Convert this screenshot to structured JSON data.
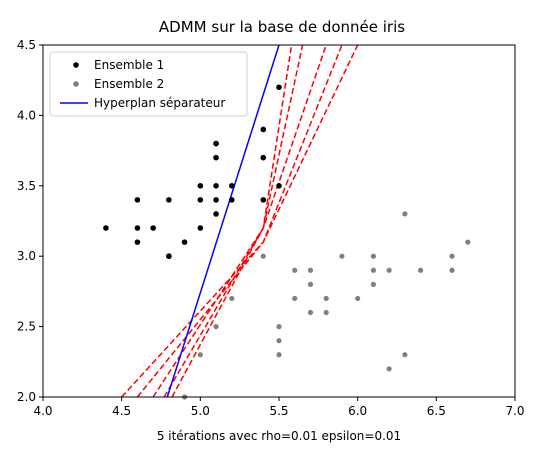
{
  "chart_data": {
    "type": "scatter",
    "title": "ADMM sur la base de donnée iris",
    "xlabel": "5 itérations avec rho=0.01  epsilon=0.01",
    "ylabel": "",
    "xlim": [
      4.0,
      7.0
    ],
    "ylim": [
      2.0,
      4.5
    ],
    "xticks": [
      "4.0",
      "4.5",
      "5.0",
      "5.5",
      "6.0",
      "6.5",
      "7.0"
    ],
    "yticks": [
      "2.0",
      "2.5",
      "3.0",
      "3.5",
      "4.0",
      "4.5"
    ],
    "grid": false,
    "legend_position": "upper-left",
    "legend": [
      "Ensemble 1",
      "Ensemble 2",
      "Hyperplan séparateur"
    ],
    "colors": {
      "ensemble1": "#000000",
      "ensemble2": "#808080",
      "hyperplan": "#0000ff",
      "iterations": "#ff0000"
    },
    "ensemble1": [
      [
        4.4,
        3.2
      ],
      [
        4.6,
        3.4
      ],
      [
        4.6,
        3.2
      ],
      [
        4.6,
        3.1
      ],
      [
        4.7,
        3.2
      ],
      [
        4.8,
        3.4
      ],
      [
        4.8,
        3.0
      ],
      [
        4.8,
        3.0
      ],
      [
        4.9,
        3.1
      ],
      [
        5.0,
        3.5
      ],
      [
        5.0,
        3.4
      ],
      [
        5.0,
        3.2
      ],
      [
        5.1,
        3.8
      ],
      [
        5.1,
        3.8
      ],
      [
        5.1,
        3.7
      ],
      [
        5.1,
        3.5
      ],
      [
        5.1,
        3.4
      ],
      [
        5.1,
        3.3
      ],
      [
        5.2,
        3.5
      ],
      [
        5.2,
        3.4
      ],
      [
        5.4,
        3.9
      ],
      [
        5.4,
        3.7
      ],
      [
        5.4,
        3.4
      ],
      [
        5.5,
        4.2
      ],
      [
        5.5,
        3.5
      ]
    ],
    "ensemble2": [
      [
        4.9,
        2.0
      ],
      [
        5.0,
        2.3
      ],
      [
        5.1,
        2.5
      ],
      [
        5.2,
        2.7
      ],
      [
        5.4,
        3.0
      ],
      [
        5.5,
        2.5
      ],
      [
        5.5,
        2.4
      ],
      [
        5.5,
        2.3
      ],
      [
        5.6,
        2.9
      ],
      [
        5.6,
        2.7
      ],
      [
        5.7,
        2.9
      ],
      [
        5.7,
        2.8
      ],
      [
        5.7,
        2.6
      ],
      [
        5.8,
        2.7
      ],
      [
        5.8,
        2.6
      ],
      [
        5.9,
        3.0
      ],
      [
        6.0,
        2.7
      ],
      [
        6.1,
        3.0
      ],
      [
        6.1,
        2.9
      ],
      [
        6.1,
        2.8
      ],
      [
        6.2,
        2.9
      ],
      [
        6.2,
        2.2
      ],
      [
        6.3,
        3.3
      ],
      [
        6.3,
        2.3
      ],
      [
        6.4,
        2.9
      ],
      [
        6.6,
        3.0
      ],
      [
        6.6,
        2.9
      ],
      [
        6.7,
        3.1
      ]
    ],
    "hyperplan": [
      [
        4.79,
        2.0
      ],
      [
        5.5,
        4.5
      ]
    ],
    "iterations": [
      [
        [
          4.5,
          2.0
        ],
        [
          5.4,
          3.1
        ],
        [
          6.0,
          4.5
        ]
      ],
      [
        [
          4.6,
          2.0
        ],
        [
          5.4,
          3.1
        ],
        [
          5.9,
          4.5
        ]
      ],
      [
        [
          4.7,
          2.0
        ],
        [
          5.4,
          3.2
        ],
        [
          5.8,
          4.5
        ]
      ],
      [
        [
          4.77,
          2.0
        ],
        [
          5.4,
          3.2
        ],
        [
          5.65,
          4.5
        ]
      ],
      [
        [
          4.82,
          2.0
        ],
        [
          5.4,
          3.2
        ],
        [
          5.58,
          4.5
        ]
      ]
    ]
  }
}
